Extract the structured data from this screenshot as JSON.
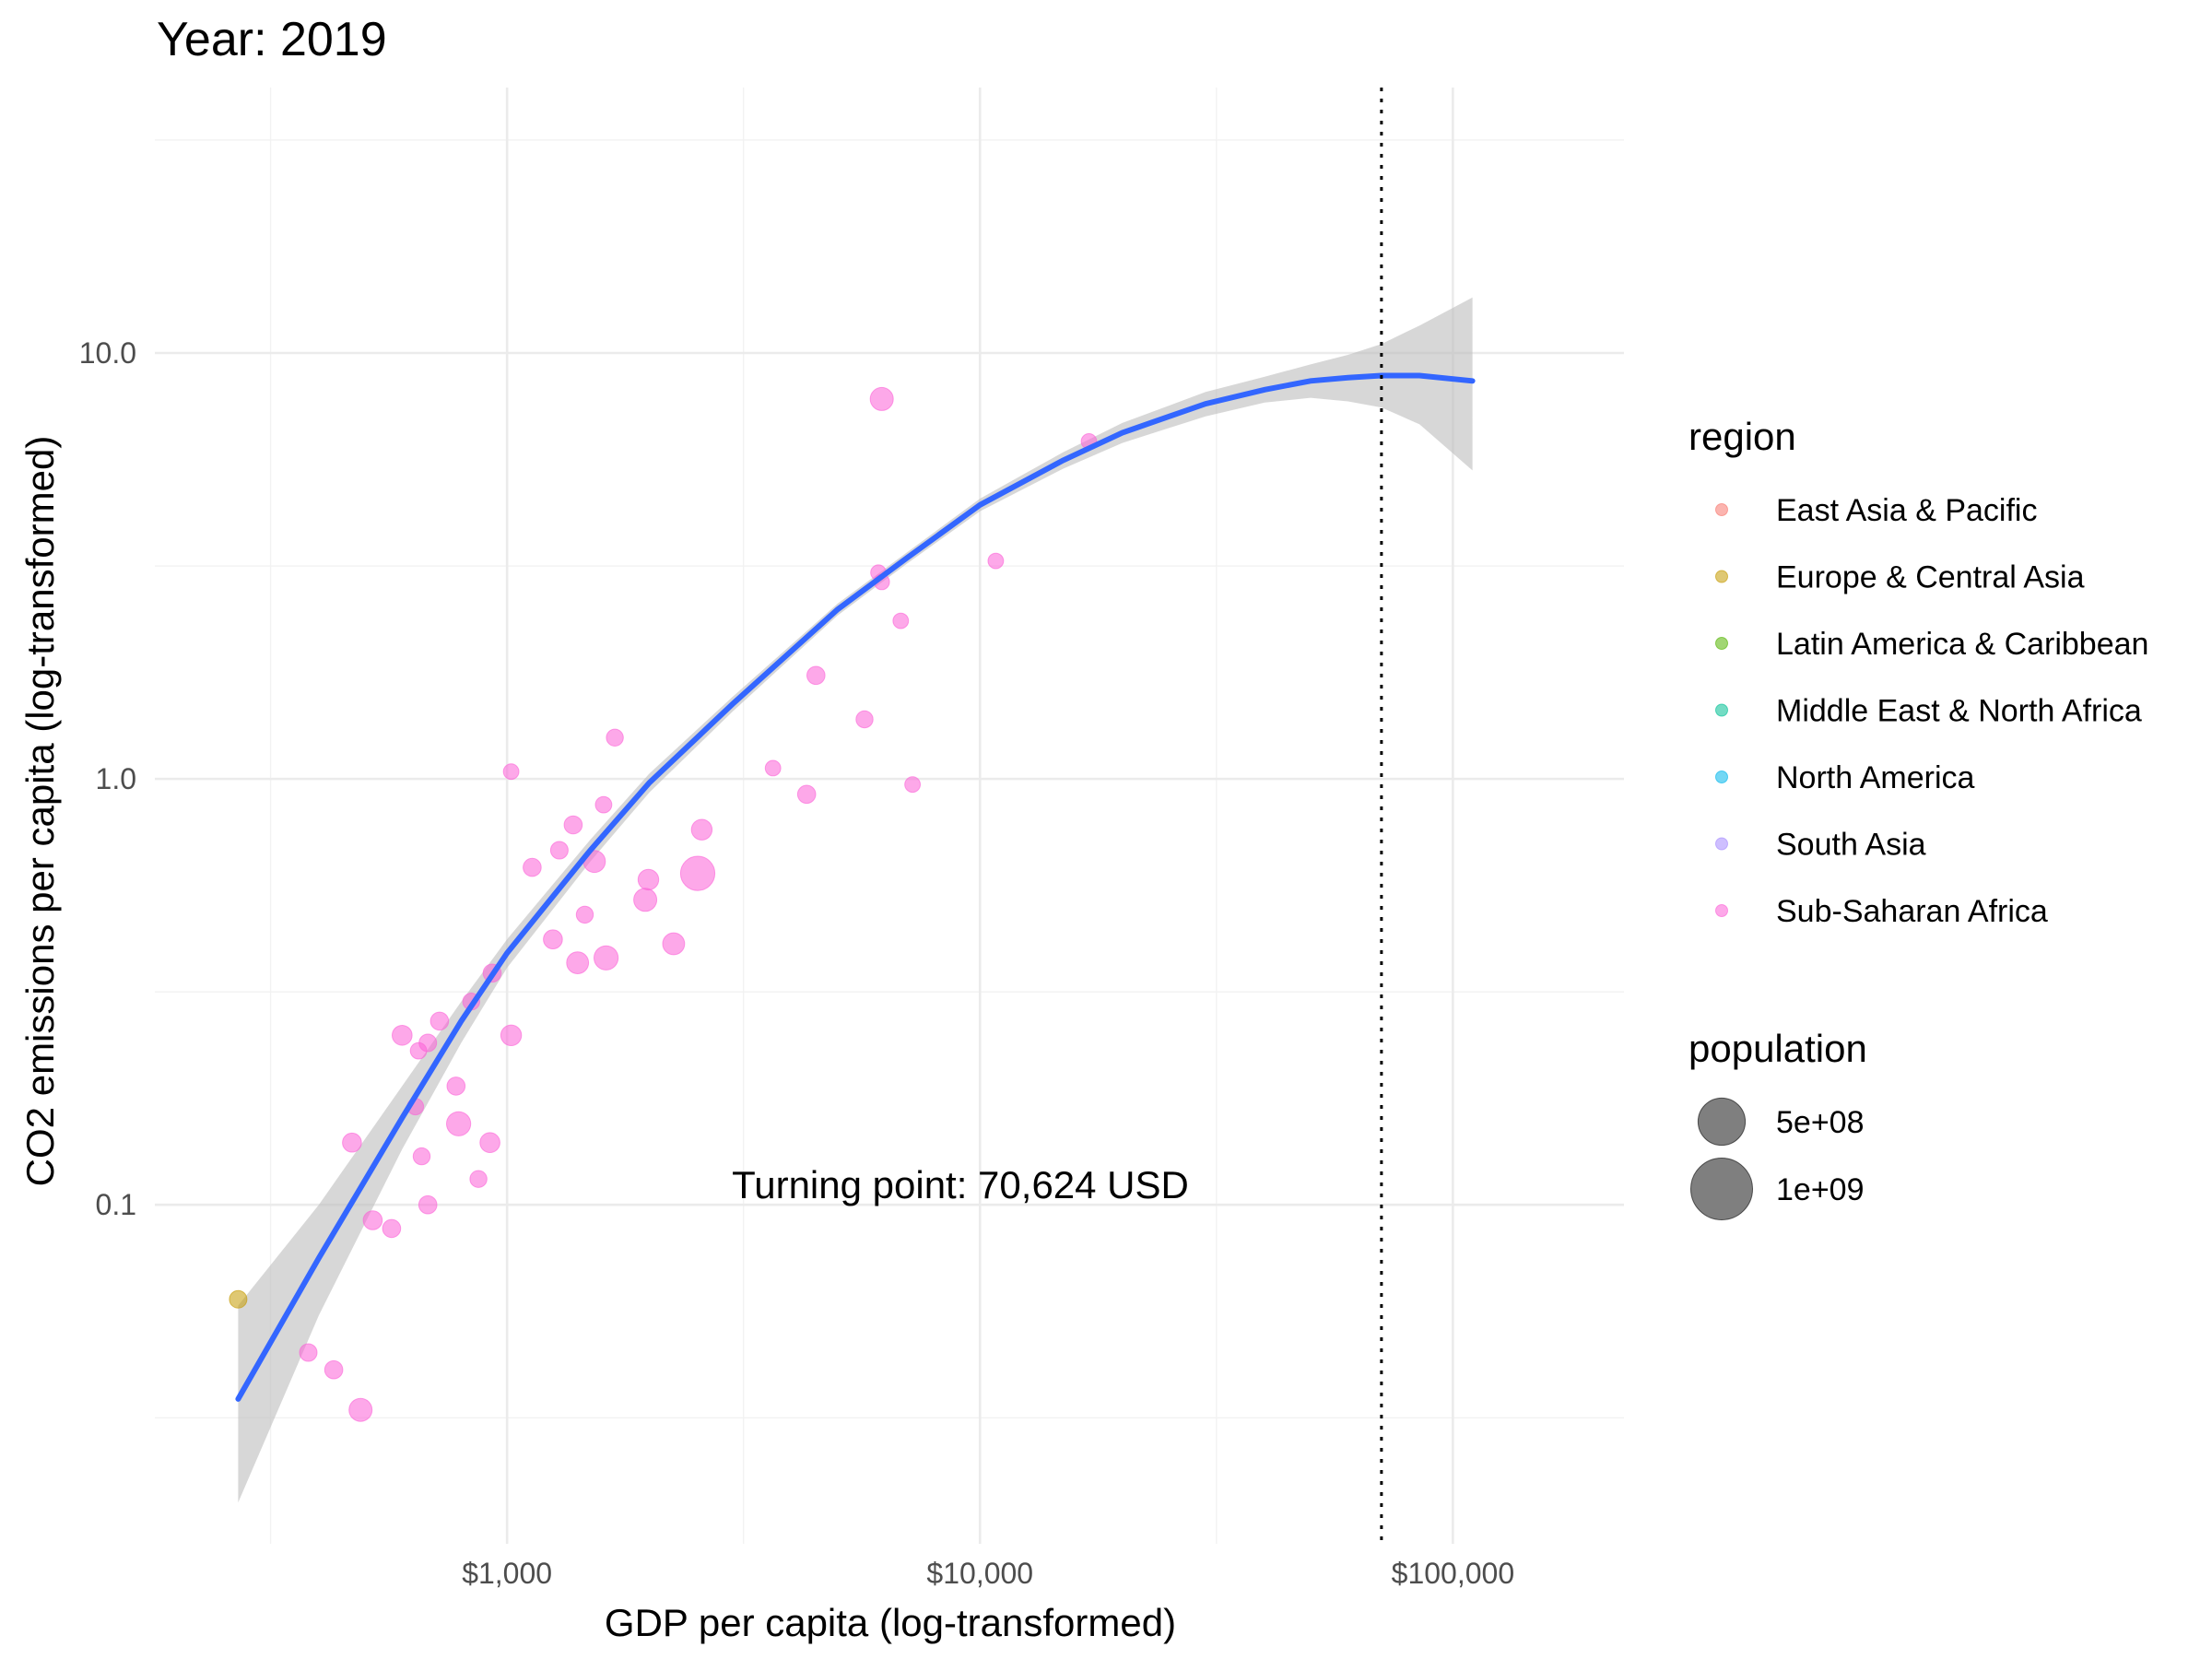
{
  "chart_data": {
    "type": "scatter",
    "title": "Year: 2019",
    "xlabel": "GDP per capita (log-transformed)",
    "ylabel": "CO2 emissions per capita (log-transformed)",
    "x_scale": "log10",
    "y_scale": "log10",
    "xlim": [
      180,
      230000
    ],
    "ylim": [
      0.016,
      42
    ],
    "x_ticks": [
      {
        "value": 1000,
        "label": "$1,000"
      },
      {
        "value": 10000,
        "label": "$10,000"
      },
      {
        "value": 100000,
        "label": "$100,000"
      }
    ],
    "y_ticks": [
      {
        "value": 0.1,
        "label": "0.1"
      },
      {
        "value": 1,
        "label": "1.0"
      },
      {
        "value": 10,
        "label": "10.0"
      }
    ],
    "grid": true,
    "legend_position": "right",
    "region_legend_title": "region",
    "size_legend_title": "population",
    "size_legend": [
      {
        "value": 500000000,
        "label": "5e+08"
      },
      {
        "value": 1000000000,
        "label": "1e+09"
      }
    ],
    "annotation": {
      "text": "Turning point: 70,624 USD",
      "x": 70624
    },
    "regions": [
      {
        "name": "East Asia & Pacific",
        "color": "#F8766D"
      },
      {
        "name": "Europe & Central Asia",
        "color": "#C49A00"
      },
      {
        "name": "Latin America & Caribbean",
        "color": "#53B400"
      },
      {
        "name": "Middle East & North Africa",
        "color": "#00C094"
      },
      {
        "name": "North America",
        "color": "#00B6EB"
      },
      {
        "name": "South Asia",
        "color": "#A58AFF"
      },
      {
        "name": "Sub-Saharan Africa",
        "color": "#FB61D7"
      }
    ],
    "fit_curve": [
      [
        270,
        0.035
      ],
      [
        400,
        0.075
      ],
      [
        600,
        0.16
      ],
      [
        800,
        0.27
      ],
      [
        1000,
        0.39
      ],
      [
        1500,
        0.68
      ],
      [
        2000,
        0.98
      ],
      [
        3000,
        1.5
      ],
      [
        5000,
        2.5
      ],
      [
        7000,
        3.3
      ],
      [
        10000,
        4.4
      ],
      [
        15000,
        5.6
      ],
      [
        20000,
        6.5
      ],
      [
        30000,
        7.6
      ],
      [
        40000,
        8.2
      ],
      [
        50000,
        8.6
      ],
      [
        60000,
        8.75
      ],
      [
        70624,
        8.85
      ],
      [
        85000,
        8.85
      ],
      [
        110000,
        8.6
      ]
    ],
    "ci_upper": [
      [
        270,
        0.058
      ],
      [
        400,
        0.1
      ],
      [
        600,
        0.19
      ],
      [
        800,
        0.3
      ],
      [
        1000,
        0.42
      ],
      [
        1500,
        0.72
      ],
      [
        2000,
        1.03
      ],
      [
        3000,
        1.56
      ],
      [
        5000,
        2.58
      ],
      [
        7000,
        3.4
      ],
      [
        10000,
        4.55
      ],
      [
        15000,
        5.85
      ],
      [
        20000,
        6.85
      ],
      [
        30000,
        8.1
      ],
      [
        40000,
        8.8
      ],
      [
        50000,
        9.4
      ],
      [
        60000,
        9.9
      ],
      [
        70624,
        10.5
      ],
      [
        85000,
        11.6
      ],
      [
        110000,
        13.5
      ]
    ],
    "ci_lower": [
      [
        270,
        0.02
      ],
      [
        400,
        0.055
      ],
      [
        600,
        0.135
      ],
      [
        800,
        0.24
      ],
      [
        1000,
        0.36
      ],
      [
        1500,
        0.64
      ],
      [
        2000,
        0.93
      ],
      [
        3000,
        1.44
      ],
      [
        5000,
        2.42
      ],
      [
        7000,
        3.2
      ],
      [
        10000,
        4.25
      ],
      [
        15000,
        5.35
      ],
      [
        20000,
        6.15
      ],
      [
        30000,
        7.1
      ],
      [
        40000,
        7.65
      ],
      [
        50000,
        7.85
      ],
      [
        60000,
        7.7
      ],
      [
        70624,
        7.45
      ],
      [
        85000,
        6.8
      ],
      [
        110000,
        5.3
      ]
    ],
    "points": [
      {
        "x": 270,
        "y": 0.06,
        "r": 1,
        "pop": 12000000
      },
      {
        "x": 380,
        "y": 0.045,
        "r": 6,
        "pop": 12000000
      },
      {
        "x": 430,
        "y": 0.041,
        "r": 6,
        "pop": 15000000
      },
      {
        "x": 490,
        "y": 0.033,
        "r": 6,
        "pop": 50000000
      },
      {
        "x": 470,
        "y": 0.14,
        "r": 6,
        "pop": 20000000
      },
      {
        "x": 520,
        "y": 0.092,
        "r": 6,
        "pop": 20000000
      },
      {
        "x": 570,
        "y": 0.088,
        "r": 6,
        "pop": 15000000
      },
      {
        "x": 600,
        "y": 0.25,
        "r": 6,
        "pop": 25000000
      },
      {
        "x": 650,
        "y": 0.23,
        "r": 6,
        "pop": 8000000
      },
      {
        "x": 680,
        "y": 0.24,
        "r": 6,
        "pop": 12000000
      },
      {
        "x": 720,
        "y": 0.27,
        "r": 6,
        "pop": 15000000
      },
      {
        "x": 660,
        "y": 0.13,
        "r": 6,
        "pop": 10000000
      },
      {
        "x": 680,
        "y": 0.1,
        "r": 6,
        "pop": 15000000
      },
      {
        "x": 640,
        "y": 0.17,
        "r": 6,
        "pop": 8000000
      },
      {
        "x": 780,
        "y": 0.19,
        "r": 6,
        "pop": 15000000
      },
      {
        "x": 790,
        "y": 0.155,
        "r": 6,
        "pop": 60000000
      },
      {
        "x": 840,
        "y": 0.3,
        "r": 6,
        "pop": 10000000
      },
      {
        "x": 870,
        "y": 0.115,
        "r": 6,
        "pop": 10000000
      },
      {
        "x": 920,
        "y": 0.14,
        "r": 6,
        "pop": 25000000
      },
      {
        "x": 930,
        "y": 0.35,
        "r": 6,
        "pop": 15000000
      },
      {
        "x": 1020,
        "y": 0.25,
        "r": 6,
        "pop": 30000000
      },
      {
        "x": 1020,
        "y": 1.04,
        "r": 6,
        "pop": 5000000
      },
      {
        "x": 1130,
        "y": 0.62,
        "r": 6,
        "pop": 15000000
      },
      {
        "x": 1250,
        "y": 0.42,
        "r": 6,
        "pop": 20000000
      },
      {
        "x": 1290,
        "y": 0.68,
        "r": 6,
        "pop": 12000000
      },
      {
        "x": 1380,
        "y": 0.78,
        "r": 6,
        "pop": 15000000
      },
      {
        "x": 1410,
        "y": 0.37,
        "r": 6,
        "pop": 40000000
      },
      {
        "x": 1460,
        "y": 0.48,
        "r": 6,
        "pop": 10000000
      },
      {
        "x": 1530,
        "y": 0.64,
        "r": 6,
        "pop": 40000000
      },
      {
        "x": 1600,
        "y": 0.87,
        "r": 6,
        "pop": 8000000
      },
      {
        "x": 1620,
        "y": 0.38,
        "r": 6,
        "pop": 60000000
      },
      {
        "x": 1690,
        "y": 1.25,
        "r": 6,
        "pop": 10000000
      },
      {
        "x": 1960,
        "y": 0.52,
        "r": 6,
        "pop": 50000000
      },
      {
        "x": 1990,
        "y": 0.58,
        "r": 6,
        "pop": 30000000
      },
      {
        "x": 2250,
        "y": 0.41,
        "r": 6,
        "pop": 40000000
      },
      {
        "x": 2530,
        "y": 0.6,
        "r": 6,
        "pop": 200000000
      },
      {
        "x": 2580,
        "y": 0.76,
        "r": 6,
        "pop": 30000000
      },
      {
        "x": 4300,
        "y": 0.92,
        "r": 6,
        "pop": 15000000
      },
      {
        "x": 4500,
        "y": 1.75,
        "r": 6,
        "pop": 15000000
      },
      {
        "x": 5700,
        "y": 1.38,
        "r": 6,
        "pop": 10000000
      },
      {
        "x": 6100,
        "y": 3.05,
        "r": 6,
        "pop": 5000000
      },
      {
        "x": 6200,
        "y": 2.9,
        "r": 6,
        "pop": 5000000
      },
      {
        "x": 6200,
        "y": 7.8,
        "r": 6,
        "pop": 50000000
      },
      {
        "x": 6800,
        "y": 2.35,
        "r": 6,
        "pop": 5000000
      },
      {
        "x": 7200,
        "y": 0.97,
        "r": 6,
        "pop": 5000000
      },
      {
        "x": 3650,
        "y": 1.06,
        "r": 6,
        "pop": 5000000
      },
      {
        "x": 10800,
        "y": 3.25,
        "r": 6,
        "pop": 5000000
      },
      {
        "x": 17000,
        "y": 6.2,
        "r": 6,
        "pop": 5000000
      }
    ]
  }
}
